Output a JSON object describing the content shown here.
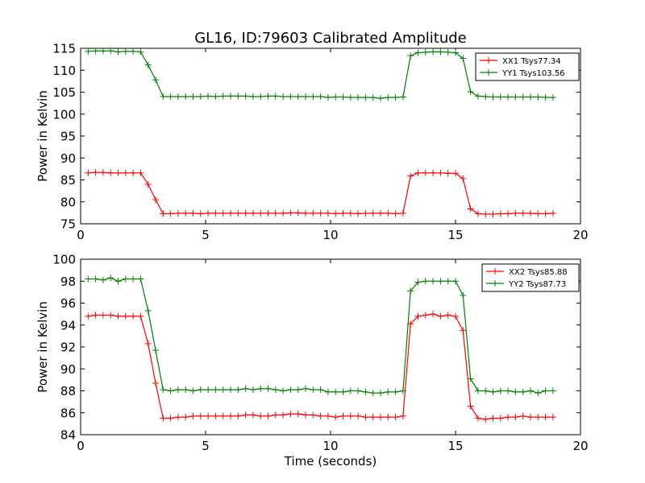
{
  "figure": {
    "title": "GL16, ID:79603 Calibrated Amplitude",
    "xlabel": "Time (seconds)"
  },
  "chart_data": [
    {
      "type": "line",
      "ylabel": "Power in Kelvin",
      "xlabel": "",
      "xlim": [
        0,
        20
      ],
      "ylim": [
        75,
        115
      ],
      "xticks": [
        "0",
        "5",
        "10",
        "15",
        "20"
      ],
      "yticks": [
        "75",
        "80",
        "85",
        "90",
        "95",
        "100",
        "105",
        "110",
        "115"
      ],
      "legend_position": "top-right",
      "grid": false,
      "x": [
        0.3,
        0.6,
        0.9,
        1.2,
        1.5,
        1.8,
        2.1,
        2.4,
        2.7,
        3.0,
        3.3,
        3.6,
        3.9,
        4.2,
        4.5,
        4.8,
        5.1,
        5.4,
        5.7,
        6.0,
        6.3,
        6.6,
        6.9,
        7.2,
        7.5,
        7.8,
        8.1,
        8.4,
        8.7,
        9.0,
        9.3,
        9.6,
        9.9,
        10.2,
        10.5,
        10.8,
        11.1,
        11.4,
        11.7,
        12.0,
        12.3,
        12.6,
        12.9,
        13.2,
        13.5,
        13.8,
        14.1,
        14.4,
        14.7,
        15.0,
        15.3,
        15.6,
        15.9,
        16.2,
        16.5,
        16.8,
        17.1,
        17.4,
        17.7,
        18.0,
        18.3,
        18.6,
        18.9
      ],
      "series": [
        {
          "name": "XX1 Tsys77.34",
          "color": "#ff0000",
          "values": [
            86.6,
            86.7,
            86.7,
            86.6,
            86.6,
            86.6,
            86.6,
            86.6,
            84.0,
            80.5,
            77.3,
            77.3,
            77.4,
            77.4,
            77.4,
            77.3,
            77.4,
            77.4,
            77.4,
            77.4,
            77.4,
            77.4,
            77.4,
            77.4,
            77.4,
            77.4,
            77.4,
            77.5,
            77.5,
            77.4,
            77.4,
            77.4,
            77.4,
            77.3,
            77.4,
            77.4,
            77.3,
            77.4,
            77.4,
            77.4,
            77.4,
            77.3,
            77.4,
            85.9,
            86.6,
            86.6,
            86.6,
            86.6,
            86.5,
            86.5,
            85.3,
            78.4,
            77.3,
            77.2,
            77.2,
            77.3,
            77.3,
            77.4,
            77.4,
            77.4,
            77.3,
            77.3,
            77.4
          ]
        },
        {
          "name": "YY1 Tsys103.56",
          "color": "#008000",
          "values": [
            114.3,
            114.4,
            114.4,
            114.4,
            114.2,
            114.3,
            114.3,
            114.2,
            111.2,
            107.8,
            104.0,
            104.0,
            104.0,
            104.0,
            104.0,
            104.0,
            104.1,
            104.0,
            104.1,
            104.1,
            104.1,
            104.1,
            104.0,
            104.0,
            104.1,
            104.1,
            104.0,
            104.0,
            104.0,
            104.0,
            104.0,
            104.0,
            103.8,
            103.9,
            103.9,
            103.8,
            103.8,
            103.8,
            103.8,
            103.6,
            103.8,
            103.8,
            103.9,
            113.3,
            114.0,
            114.1,
            114.2,
            114.2,
            114.1,
            114.0,
            112.7,
            105.1,
            104.1,
            104.0,
            103.9,
            103.9,
            103.9,
            103.9,
            103.9,
            103.9,
            103.9,
            103.8,
            103.8
          ]
        }
      ]
    },
    {
      "type": "line",
      "ylabel": "Power in Kelvin",
      "xlabel": "Time (seconds)",
      "xlim": [
        0,
        20
      ],
      "ylim": [
        84,
        100
      ],
      "xticks": [
        "0",
        "5",
        "10",
        "15",
        "20"
      ],
      "yticks": [
        "84",
        "86",
        "88",
        "90",
        "92",
        "94",
        "96",
        "98",
        "100"
      ],
      "legend_position": "top-right",
      "grid": false,
      "x": [
        0.3,
        0.6,
        0.9,
        1.2,
        1.5,
        1.8,
        2.1,
        2.4,
        2.7,
        3.0,
        3.3,
        3.6,
        3.9,
        4.2,
        4.5,
        4.8,
        5.1,
        5.4,
        5.7,
        6.0,
        6.3,
        6.6,
        6.9,
        7.2,
        7.5,
        7.8,
        8.1,
        8.4,
        8.7,
        9.0,
        9.3,
        9.6,
        9.9,
        10.2,
        10.5,
        10.8,
        11.1,
        11.4,
        11.7,
        12.0,
        12.3,
        12.6,
        12.9,
        13.2,
        13.5,
        13.8,
        14.1,
        14.4,
        14.7,
        15.0,
        15.3,
        15.6,
        15.9,
        16.2,
        16.5,
        16.8,
        17.1,
        17.4,
        17.7,
        18.0,
        18.3,
        18.6,
        18.9
      ],
      "series": [
        {
          "name": "XX2 Tsys85.88",
          "color": "#ff0000",
          "values": [
            94.8,
            94.9,
            94.9,
            94.9,
            94.8,
            94.8,
            94.8,
            94.8,
            92.3,
            88.7,
            85.5,
            85.5,
            85.6,
            85.6,
            85.7,
            85.7,
            85.7,
            85.7,
            85.7,
            85.7,
            85.7,
            85.8,
            85.8,
            85.7,
            85.7,
            85.8,
            85.8,
            85.9,
            85.9,
            85.8,
            85.8,
            85.7,
            85.7,
            85.6,
            85.7,
            85.7,
            85.7,
            85.6,
            85.6,
            85.6,
            85.6,
            85.6,
            85.7,
            94.1,
            94.8,
            94.9,
            95.0,
            94.8,
            94.9,
            94.8,
            93.5,
            86.6,
            85.5,
            85.4,
            85.5,
            85.5,
            85.6,
            85.6,
            85.7,
            85.6,
            85.6,
            85.6,
            85.6
          ]
        },
        {
          "name": "YY2 Tsys87.73",
          "color": "#008000",
          "values": [
            98.2,
            98.2,
            98.1,
            98.3,
            98.0,
            98.2,
            98.2,
            98.2,
            95.3,
            91.7,
            88.1,
            88.0,
            88.1,
            88.1,
            88.0,
            88.1,
            88.1,
            88.1,
            88.1,
            88.1,
            88.1,
            88.2,
            88.1,
            88.2,
            88.2,
            88.1,
            88.0,
            88.1,
            88.1,
            88.2,
            88.1,
            88.1,
            87.9,
            87.9,
            87.9,
            88.0,
            88.0,
            87.9,
            87.8,
            87.8,
            87.9,
            87.9,
            88.0,
            97.1,
            97.9,
            98.0,
            98.0,
            98.0,
            98.0,
            98.0,
            96.7,
            89.1,
            88.0,
            88.0,
            87.9,
            88.0,
            88.0,
            87.9,
            87.9,
            88.0,
            87.8,
            88.0,
            88.0
          ]
        }
      ]
    }
  ]
}
